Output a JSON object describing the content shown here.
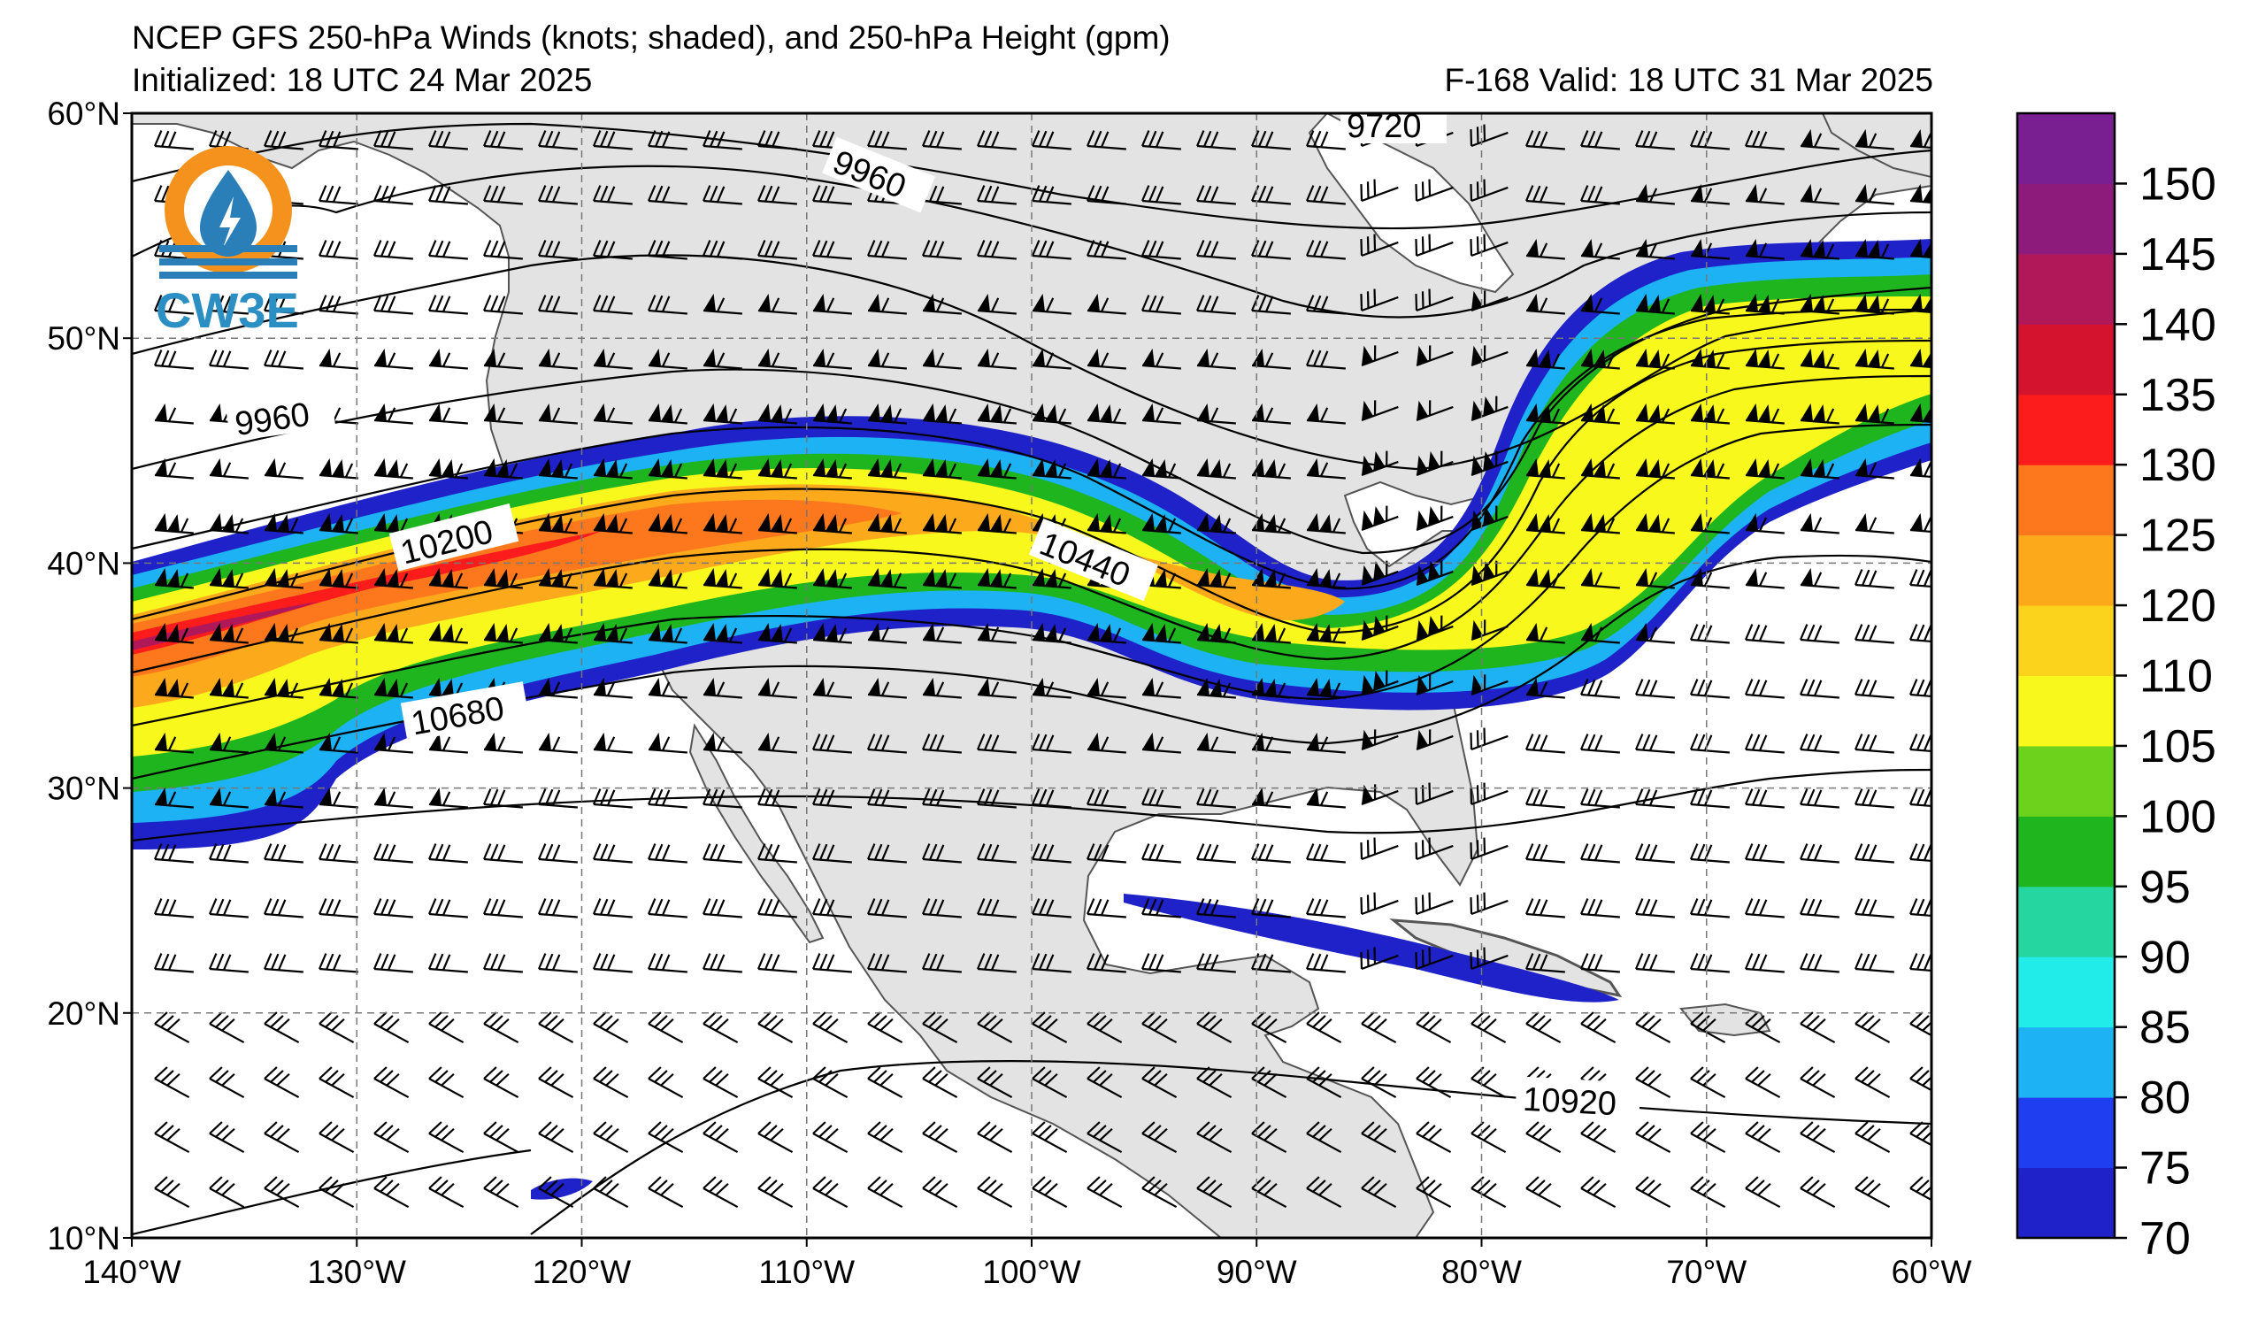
{
  "header": {
    "title": "NCEP GFS 250-hPa Winds (knots; shaded), and 250-hPa Height (gpm)",
    "initialized": "Initialized: 18 UTC 24 Mar 2025",
    "valid": "F-168  Valid: 18 UTC 31 Mar 2025"
  },
  "logo": {
    "text": "CW3E"
  },
  "axes": {
    "lat_labels": [
      "60°N",
      "50°N",
      "40°N",
      "30°N",
      "20°N",
      "10°N"
    ],
    "lat_values": [
      60,
      50,
      40,
      30,
      20,
      10
    ],
    "lon_labels": [
      "140°W",
      "130°W",
      "120°W",
      "110°W",
      "100°W",
      "90°W",
      "80°W",
      "70°W",
      "60°W"
    ],
    "lon_values": [
      -140,
      -130,
      -120,
      -110,
      -100,
      -90,
      -80,
      -70,
      -60
    ]
  },
  "colorbar": {
    "labels": [
      "150",
      "145",
      "140",
      "135",
      "130",
      "125",
      "120",
      "110",
      "105",
      "100",
      "95",
      "90",
      "85",
      "80",
      "75",
      "70"
    ],
    "bins": [
      {
        "color": "#1f22c8"
      },
      {
        "color": "#1e3ef0"
      },
      {
        "color": "#1cb2f4"
      },
      {
        "color": "#22ecea"
      },
      {
        "color": "#26d6a0"
      },
      {
        "color": "#1fb51f"
      },
      {
        "color": "#6cd21c"
      },
      {
        "color": "#f8f81c"
      },
      {
        "color": "#fbd21c"
      },
      {
        "color": "#fda91c"
      },
      {
        "color": "#fd781c"
      },
      {
        "color": "#fc1c1c"
      },
      {
        "color": "#d4142e"
      },
      {
        "color": "#b0185a"
      },
      {
        "color": "#8c1b7c"
      },
      {
        "color": "#7a1f92"
      }
    ]
  },
  "contour_labels": [
    "9720",
    "9960",
    "9960",
    "10200",
    "10440",
    "10680",
    "10920"
  ],
  "colors": {
    "land": "#e3e3e3",
    "ocean": "#ffffff",
    "contour": "#000000"
  }
}
